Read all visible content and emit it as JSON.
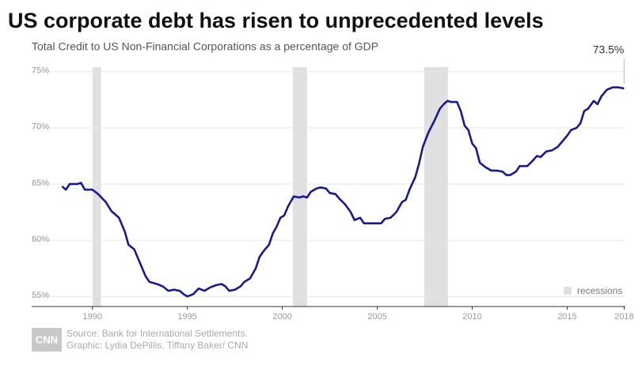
{
  "chart_data": {
    "type": "line",
    "title": "US corporate debt has risen to unprecedented levels",
    "subtitle": "Total Credit to US Non-Financial Corporations as a percentage of GDP",
    "x": [
      1988.4,
      1988.6,
      1988.8,
      1989.2,
      1989.4,
      1989.6,
      1990.0,
      1990.3,
      1990.7,
      1991.0,
      1991.4,
      1991.7,
      1991.9,
      1992.2,
      1992.5,
      1992.8,
      1993.0,
      1993.4,
      1993.7,
      1994.0,
      1994.3,
      1994.6,
      1994.8,
      1995.0,
      1995.3,
      1995.6,
      1995.9,
      1996.2,
      1996.5,
      1996.8,
      1997.0,
      1997.2,
      1997.5,
      1997.8,
      1998.0,
      1998.3,
      1998.6,
      1998.8,
      1999.0,
      1999.3,
      1999.5,
      1999.7,
      1999.9,
      2000.1,
      2000.3,
      2000.6,
      2000.9,
      2001.1,
      2001.3,
      2001.5,
      2001.8,
      2002.0,
      2002.3,
      2002.5,
      2002.8,
      2003.0,
      2003.3,
      2003.6,
      2003.8,
      2004.1,
      2004.3,
      2004.6,
      2005.0,
      2005.2,
      2005.4,
      2005.7,
      2006.0,
      2006.3,
      2006.5,
      2006.7,
      2007.0,
      2007.2,
      2007.4,
      2007.7,
      2008.0,
      2008.3,
      2008.5,
      2008.7,
      2008.9,
      2009.2,
      2009.4,
      2009.6,
      2009.8,
      2010.0,
      2010.2,
      2010.4,
      2010.7,
      2011.0,
      2011.3,
      2011.6,
      2011.8,
      2012.0,
      2012.3,
      2012.5,
      2012.9,
      2013.2,
      2013.4,
      2013.6,
      2013.9,
      2014.2,
      2014.5,
      2014.8,
      2015.0,
      2015.2,
      2015.5,
      2015.7,
      2015.9,
      2016.1,
      2016.4,
      2016.6,
      2016.8,
      2017.1,
      2017.4,
      2017.7,
      2018.0
    ],
    "values": [
      64.8,
      64.5,
      65.0,
      65.0,
      65.1,
      64.5,
      64.5,
      64.1,
      63.4,
      62.6,
      62.0,
      60.8,
      59.6,
      59.2,
      58.0,
      56.8,
      56.3,
      56.1,
      55.9,
      55.5,
      55.6,
      55.5,
      55.2,
      55.0,
      55.2,
      55.7,
      55.5,
      55.8,
      56.0,
      56.1,
      55.9,
      55.5,
      55.6,
      55.9,
      56.3,
      56.6,
      57.5,
      58.5,
      59.0,
      59.6,
      60.6,
      61.2,
      62.0,
      62.2,
      63.0,
      63.9,
      63.8,
      63.9,
      63.8,
      64.3,
      64.6,
      64.7,
      64.6,
      64.2,
      64.1,
      63.7,
      63.2,
      62.5,
      61.8,
      62.0,
      61.5,
      61.5,
      61.5,
      61.5,
      61.9,
      62.0,
      62.5,
      63.4,
      63.6,
      64.5,
      65.6,
      66.8,
      68.3,
      69.6,
      70.6,
      71.7,
      72.1,
      72.4,
      72.3,
      72.3,
      71.5,
      70.2,
      69.8,
      68.6,
      68.2,
      66.9,
      66.5,
      66.2,
      66.2,
      66.1,
      65.8,
      65.8,
      66.1,
      66.6,
      66.6,
      67.1,
      67.5,
      67.4,
      67.9,
      68.0,
      68.3,
      68.9,
      69.3,
      69.8,
      70.0,
      70.4,
      71.5,
      71.7,
      72.4,
      72.1,
      72.8,
      73.4,
      73.6,
      73.6,
      73.5
    ],
    "color": "#1a1a8c",
    "annotation": {
      "value": 73.5,
      "label": "73.5%"
    },
    "recessions": {
      "label": "recessions",
      "color": "#e0e0e0",
      "ranges": [
        [
          1990.0,
          1990.45
        ],
        [
          2000.55,
          2001.3
        ],
        [
          2007.47,
          2008.72
        ]
      ]
    },
    "xlim": [
      1986.8,
      2018.4
    ],
    "xticks": [
      1990,
      1995,
      2000,
      2005,
      2010,
      2015,
      2018
    ],
    "ylim": [
      54.1,
      75.4
    ],
    "yticks": [
      {
        "value": 55,
        "label": "55%"
      },
      {
        "value": 60,
        "label": "60%"
      },
      {
        "value": 65,
        "label": "65%"
      },
      {
        "value": 70,
        "label": "70%"
      },
      {
        "value": 75,
        "label": "75%"
      }
    ],
    "grid": true,
    "source": "Source: Bank for International Settlements.",
    "credit": "Graphic: Lydia DePillis, Tiffany Baker/ CNN"
  }
}
